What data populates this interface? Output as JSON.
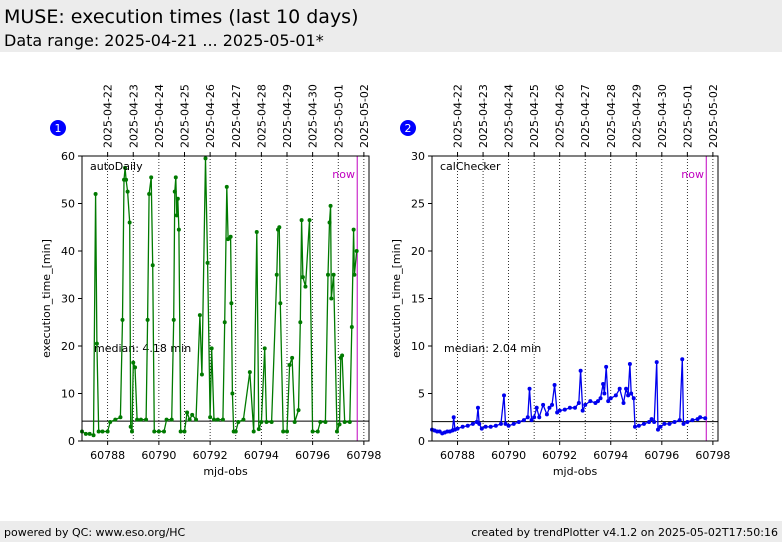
{
  "header": {
    "title": "MUSE: execution times (last 10 days)",
    "subtitle": "Data range: 2025-04-21 ... 2025-05-01*"
  },
  "footer": {
    "left": "powered by QC: www.eso.org/HC",
    "right": "created by trendPlotter v4.1.2 on 2025-05-02T17:50:16"
  },
  "chart_data": [
    {
      "type": "line",
      "badge": "1",
      "label": "autoDaily",
      "xlabel": "mjd-obs",
      "ylabel": "execution_time_[min]",
      "xlim": [
        60787,
        60798.2
      ],
      "xticks": [
        60788,
        60790,
        60792,
        60794,
        60796,
        60798
      ],
      "x2ticks": [
        {
          "value": 60788,
          "label": "2025-04-22"
        },
        {
          "value": 60789,
          "label": "2025-04-23"
        },
        {
          "value": 60790,
          "label": "2025-04-24"
        },
        {
          "value": 60791,
          "label": "2025-04-25"
        },
        {
          "value": 60792,
          "label": "2025-04-26"
        },
        {
          "value": 60793,
          "label": "2025-04-27"
        },
        {
          "value": 60794,
          "label": "2025-04-28"
        },
        {
          "value": 60795,
          "label": "2025-04-29"
        },
        {
          "value": 60796,
          "label": "2025-04-30"
        },
        {
          "value": 60797,
          "label": "2025-05-01"
        },
        {
          "value": 60798,
          "label": "2025-05-02"
        }
      ],
      "ylim": [
        0,
        60
      ],
      "yticks": [
        0,
        10,
        20,
        30,
        40,
        50,
        60
      ],
      "median": {
        "value": 4.18,
        "label": "median: 4.18 min"
      },
      "now": {
        "value": 60797.74,
        "label": "now",
        "color": "#c000c0"
      },
      "series": [
        {
          "color": "#007a00",
          "x": [
            60787.0,
            60787.15,
            60787.3,
            60787.45,
            60787.53,
            60787.58,
            60787.65,
            60787.8,
            60788.0,
            60788.1,
            60788.3,
            60788.5,
            60788.58,
            60788.64,
            60788.68,
            60788.72,
            60788.78,
            60788.86,
            60788.9,
            60788.95,
            60789.0,
            60789.07,
            60789.15,
            60789.3,
            60789.5,
            60789.56,
            60789.62,
            60789.7,
            60789.76,
            60789.82,
            60790.0,
            60790.2,
            60790.3,
            60790.5,
            60790.58,
            60790.62,
            60790.66,
            60790.7,
            60790.74,
            60790.78,
            60790.85,
            60791.0,
            60791.1,
            60791.2,
            60791.3,
            60791.45,
            60791.6,
            60791.68,
            60791.82,
            60791.9,
            60792.0,
            60792.06,
            60792.15,
            60792.3,
            60792.5,
            60792.57,
            60792.65,
            60792.7,
            60792.8,
            60792.83,
            60792.87,
            60792.92,
            60793.0,
            60793.1,
            60793.3,
            60793.55,
            60793.7,
            60793.82,
            60793.9,
            60794.0,
            60794.13,
            60794.2,
            60794.4,
            60794.6,
            60794.65,
            60794.7,
            60794.74,
            60794.85,
            60795.0,
            60795.1,
            60795.2,
            60795.3,
            60795.45,
            60795.52,
            60795.57,
            60795.62,
            60795.72,
            60795.88,
            60796.0,
            60796.2,
            60796.3,
            60796.5,
            60796.6,
            60796.66,
            60796.7,
            60796.73,
            60796.82,
            60796.95,
            60797.05,
            60797.1,
            60797.15,
            60797.25,
            60797.45,
            60797.53,
            60797.6,
            60797.63,
            60797.72
          ],
          "values": [
            2,
            1.5,
            1.5,
            1.2,
            52,
            20.5,
            2,
            2,
            2,
            4,
            4.5,
            5,
            25.5,
            55,
            57.5,
            55,
            52.5,
            46,
            3,
            2,
            16.5,
            15.5,
            4.5,
            4.5,
            4.5,
            25.5,
            52,
            55.5,
            37,
            2,
            2,
            2,
            4.5,
            4.5,
            25.5,
            52.5,
            55.5,
            47.5,
            51,
            44.5,
            2,
            2,
            6,
            4.5,
            5.5,
            4.5,
            26.5,
            14,
            59.5,
            37.5,
            5,
            19.5,
            4.5,
            4.5,
            4.5,
            25,
            53.5,
            42.5,
            43,
            29,
            10,
            2,
            2,
            4,
            4.5,
            14.5,
            2,
            44,
            2.5,
            4,
            19.5,
            4,
            4,
            35,
            44.5,
            45,
            29,
            2,
            2,
            16,
            17.5,
            4,
            6.5,
            25,
            46.5,
            34.5,
            32.5,
            46.5,
            2,
            2,
            4,
            4,
            35,
            46,
            49.5,
            30,
            35,
            2,
            3.5,
            17.5,
            18,
            4,
            4,
            24,
            44.5,
            35,
            40
          ]
        }
      ]
    },
    {
      "type": "line",
      "badge": "2",
      "label": "calChecker",
      "xlabel": "mjd-obs",
      "ylabel": "execution_time_[min]",
      "xlim": [
        60787,
        60798.2
      ],
      "xticks": [
        60788,
        60790,
        60792,
        60794,
        60796,
        60798
      ],
      "x2ticks": [
        {
          "value": 60788,
          "label": "2025-04-22"
        },
        {
          "value": 60789,
          "label": "2025-04-23"
        },
        {
          "value": 60790,
          "label": "2025-04-24"
        },
        {
          "value": 60791,
          "label": "2025-04-25"
        },
        {
          "value": 60792,
          "label": "2025-04-26"
        },
        {
          "value": 60793,
          "label": "2025-04-27"
        },
        {
          "value": 60794,
          "label": "2025-04-28"
        },
        {
          "value": 60795,
          "label": "2025-04-29"
        },
        {
          "value": 60796,
          "label": "2025-04-30"
        },
        {
          "value": 60797,
          "label": "2025-05-01"
        },
        {
          "value": 60798,
          "label": "2025-05-02"
        }
      ],
      "ylim": [
        0,
        30
      ],
      "yticks": [
        0,
        5,
        10,
        15,
        20,
        25,
        30
      ],
      "median": {
        "value": 2.04,
        "label": "median: 2.04 min"
      },
      "now": {
        "value": 60797.74,
        "label": "now",
        "color": "#c000c0"
      },
      "series": [
        {
          "color": "#0000ee",
          "x": [
            60787.0,
            60787.1,
            60787.2,
            60787.3,
            60787.4,
            60787.5,
            60787.6,
            60787.7,
            60787.8,
            60787.85,
            60787.9,
            60788.0,
            60788.2,
            60788.4,
            60788.6,
            60788.75,
            60788.8,
            60788.85,
            60788.95,
            60789.1,
            60789.3,
            60789.5,
            60789.7,
            60789.82,
            60789.88,
            60790.0,
            60790.2,
            60790.4,
            60790.6,
            60790.75,
            60790.82,
            60790.9,
            60791.0,
            60791.1,
            60791.2,
            60791.35,
            60791.5,
            60791.6,
            60791.7,
            60791.8,
            60791.9,
            60792.0,
            60792.2,
            60792.4,
            60792.6,
            60792.75,
            60792.82,
            60792.9,
            60793.0,
            60793.2,
            60793.4,
            60793.5,
            60793.6,
            60793.7,
            60793.75,
            60793.82,
            60793.9,
            60794.0,
            60794.2,
            60794.35,
            60794.5,
            60794.6,
            60794.68,
            60794.75,
            60794.8,
            60794.9,
            60794.95,
            60795.1,
            60795.3,
            60795.5,
            60795.6,
            60795.7,
            60795.8,
            60795.85,
            60795.95,
            60796.1,
            60796.3,
            60796.5,
            60796.7,
            60796.8,
            60796.85,
            60797.0,
            60797.2,
            60797.4,
            60797.5,
            60797.7
          ],
          "values": [
            1.2,
            1.1,
            1,
            1,
            0.8,
            0.9,
            1,
            1,
            1.1,
            2.5,
            1.2,
            1.3,
            1.5,
            1.6,
            1.8,
            2,
            3.5,
            1.8,
            1.3,
            1.5,
            1.5,
            1.6,
            1.8,
            4.8,
            1.8,
            1.6,
            1.8,
            2,
            2.2,
            2.5,
            5.5,
            2.2,
            2.5,
            3.5,
            2.5,
            3.8,
            2.8,
            3.5,
            3.8,
            5.9,
            3,
            3.2,
            3.3,
            3.5,
            3.5,
            4,
            7.4,
            3.2,
            3.8,
            4.2,
            4,
            4.2,
            4.5,
            6,
            5,
            7.8,
            4.2,
            4.5,
            4.8,
            5.5,
            4,
            5.5,
            4.8,
            8.1,
            5,
            4.5,
            1.5,
            1.6,
            1.8,
            2,
            2.3,
            2,
            8.3,
            1.2,
            1.5,
            1.8,
            1.8,
            2,
            2.2,
            8.6,
            1.8,
            2,
            2.2,
            2.3,
            2.5,
            2.4
          ]
        }
      ]
    }
  ]
}
